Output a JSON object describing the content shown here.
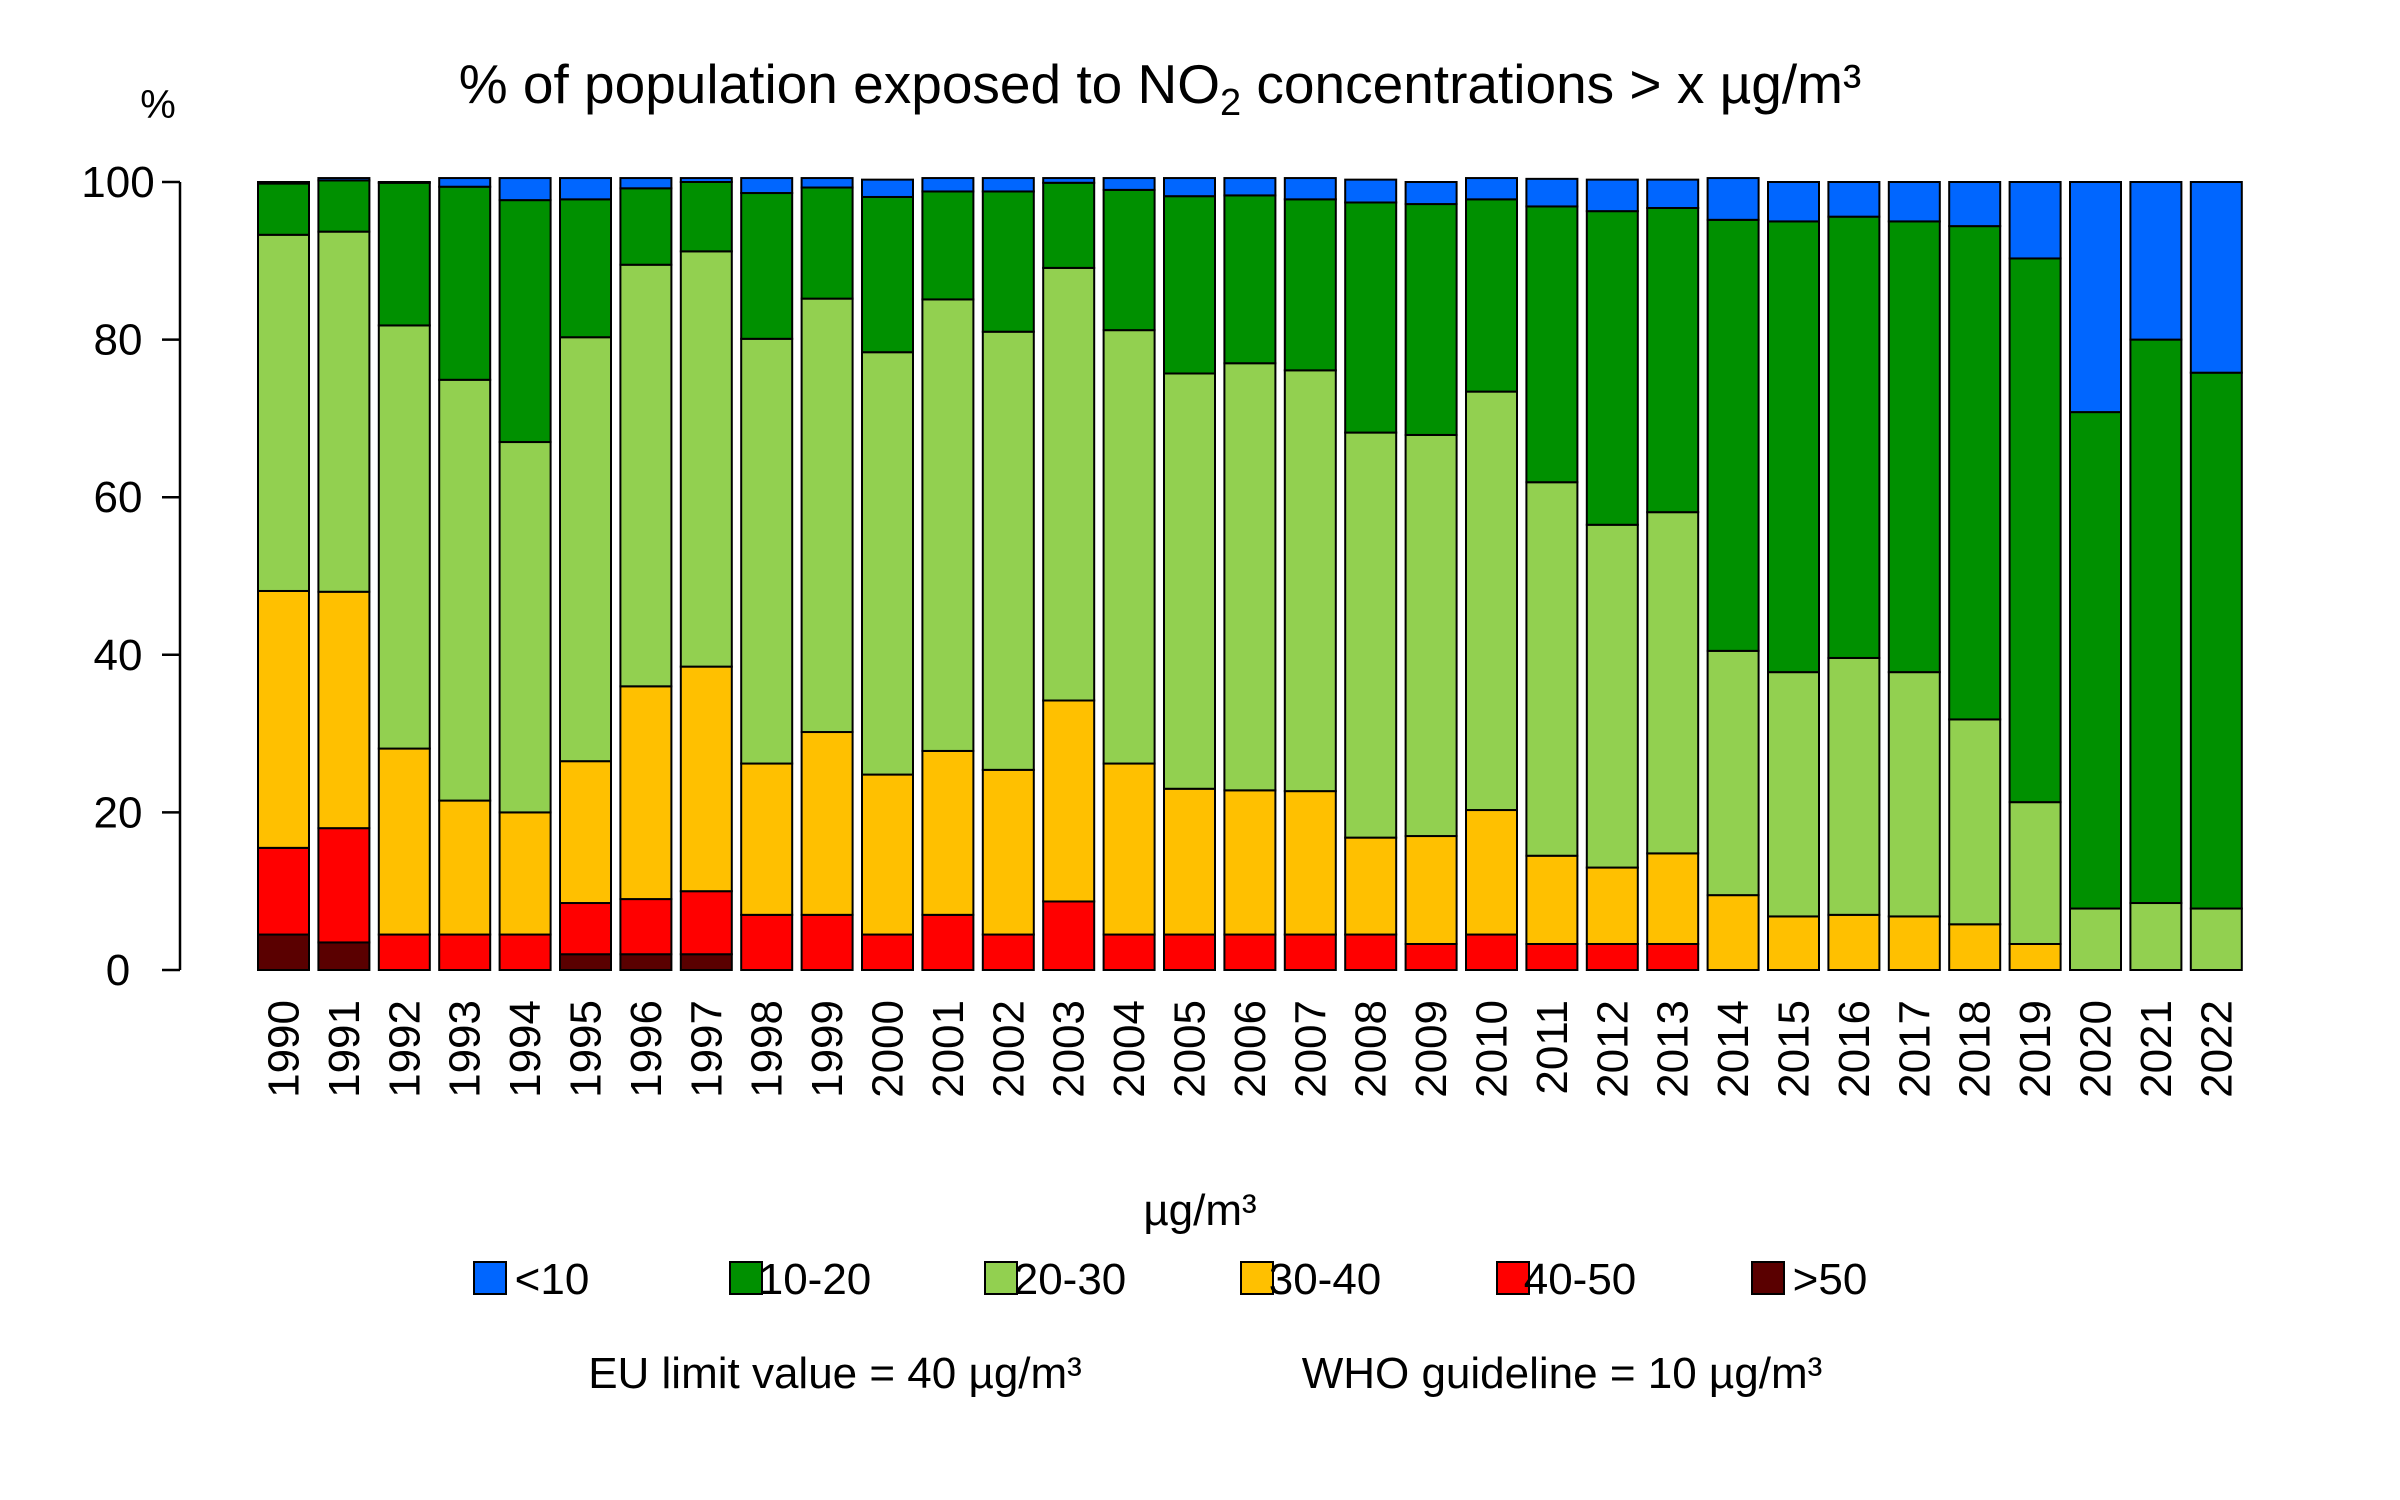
{
  "chart_data": {
    "type": "bar",
    "stacked": true,
    "title": {
      "prefix": "% of population exposed to NO",
      "subscript": "2",
      "suffix": " concentrations > x µg/m³"
    },
    "y_unit_label": "%",
    "ylim": [
      0,
      100
    ],
    "y_ticks": [
      "0",
      "20",
      "40",
      "60",
      "80",
      "100"
    ],
    "grid": false,
    "categories": [
      "1990",
      "1991",
      "1992",
      "1993",
      "1994",
      "1995",
      "1996",
      "1997",
      "1998",
      "1999",
      "2000",
      "2001",
      "2002",
      "2003",
      "2004",
      "2005",
      "2006",
      "2007",
      "2008",
      "2009",
      "2010",
      "2011",
      "2012",
      "2013",
      "2014",
      "2015",
      "2016",
      "2017",
      "2018",
      "2019",
      "2020",
      "2021",
      "2022"
    ],
    "series": [
      {
        "name": ">50",
        "color": "#5a0000",
        "values": [
          4.5,
          3.5,
          0,
          0,
          0,
          2,
          2,
          2,
          0,
          0,
          0,
          0,
          0,
          0,
          0,
          0,
          0,
          0,
          0,
          0,
          0,
          0,
          0,
          0,
          0,
          0,
          0,
          0,
          0,
          0,
          0,
          0,
          0
        ]
      },
      {
        "name": "40-50",
        "color": "#ff0000",
        "values": [
          11,
          14.5,
          4.5,
          4.5,
          4.5,
          6.5,
          7,
          8,
          7,
          7,
          4.5,
          7,
          4.5,
          8.7,
          4.5,
          4.5,
          4.5,
          4.5,
          4.5,
          3.3,
          4.5,
          3.3,
          3.3,
          3.3,
          0,
          0,
          0,
          0,
          0,
          0,
          0,
          0,
          0
        ]
      },
      {
        "name": "30-40",
        "color": "#ffc000",
        "values": [
          32.6,
          30,
          23.6,
          17,
          15.5,
          18,
          27,
          28.5,
          19.2,
          23.2,
          20.3,
          20.8,
          20.9,
          25.5,
          21.7,
          18.5,
          18.3,
          18.2,
          12.3,
          13.7,
          15.8,
          11.2,
          9.7,
          11.5,
          9.5,
          6.8,
          7,
          6.8,
          5.8,
          3.3,
          0,
          0,
          0
        ]
      },
      {
        "name": "20-30",
        "color": "#92d050",
        "values": [
          45.2,
          45.7,
          53.7,
          53.4,
          47,
          53.8,
          53.5,
          52.7,
          53.9,
          55,
          53.6,
          57.3,
          55.6,
          54.9,
          55,
          52.7,
          54.2,
          53.4,
          51.4,
          50.9,
          53.1,
          47.4,
          43.5,
          43.3,
          31,
          31,
          32.6,
          31,
          26,
          18,
          7.8,
          8.5,
          7.8
        ]
      },
      {
        "name": "10-20",
        "color": "#009000",
        "values": [
          6.5,
          6.5,
          18.1,
          24.5,
          30.7,
          17.5,
          9.7,
          8.8,
          18.5,
          14.1,
          19.7,
          13.7,
          17.8,
          10.8,
          17.8,
          22.5,
          21.3,
          21.7,
          29.2,
          29.3,
          24.4,
          35,
          39.8,
          38.6,
          54.7,
          57.2,
          56,
          57.2,
          62.6,
          69,
          63,
          71.5,
          68
        ]
      },
      {
        "name": "<10",
        "color": "#0066ff",
        "values": [
          0.2,
          0.3,
          0.1,
          1.1,
          2.8,
          2.7,
          1.3,
          0.5,
          1.9,
          1.2,
          2.2,
          1.7,
          1.7,
          0.6,
          1.5,
          2.3,
          2.2,
          2.7,
          2.9,
          2.8,
          2.7,
          3.5,
          4,
          3.6,
          5.3,
          5,
          4.4,
          5,
          5.6,
          9.7,
          29.2,
          20,
          24.2
        ]
      }
    ],
    "legend": {
      "title": "µg/m³",
      "placement": "bottom",
      "order": [
        "<10",
        "10-20",
        "20-30",
        "30-40",
        "40-50",
        ">50"
      ]
    },
    "footnote": {
      "eu_limit": "EU limit value = 40 µg/m³",
      "who_guideline": "WHO guideline = 10 µg/m³"
    }
  }
}
